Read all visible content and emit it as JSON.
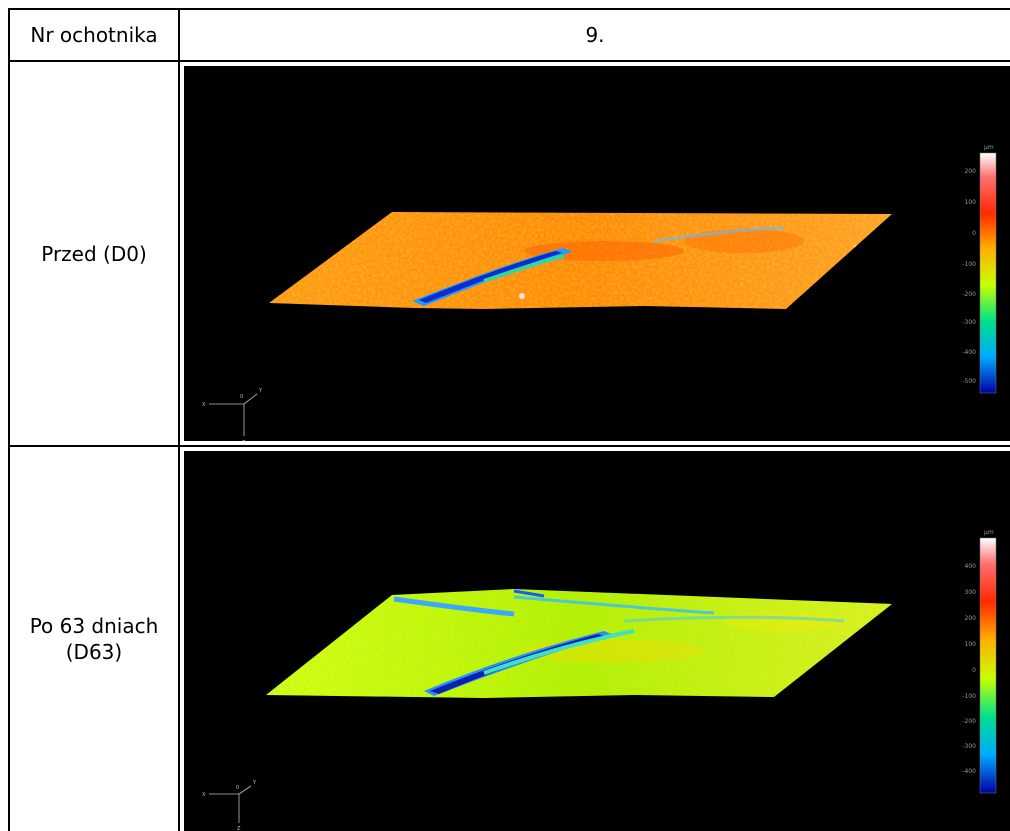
{
  "table": {
    "header_label": "Nr ochotnika",
    "header_value": "9.",
    "rows": [
      {
        "label_line1": "Przed (D0)",
        "label_line2": "",
        "scale_unit": "µm",
        "scale_ticks": [
          "200",
          "100",
          "0",
          "-100",
          "-200",
          "-300",
          "-400",
          "-500"
        ],
        "axis_labels": {
          "x": "X",
          "y": "Y",
          "z": "Z",
          "origin": "0"
        }
      },
      {
        "label_line1": "Po 63 dniach",
        "label_line2": "(D63)",
        "scale_unit": "µm",
        "scale_ticks": [
          "400",
          "300",
          "200",
          "100",
          "0",
          "-100",
          "-200",
          "-300",
          "-400"
        ],
        "axis_labels": {
          "x": "X",
          "y": "Y",
          "z": "Z",
          "origin": "0"
        }
      }
    ]
  }
}
